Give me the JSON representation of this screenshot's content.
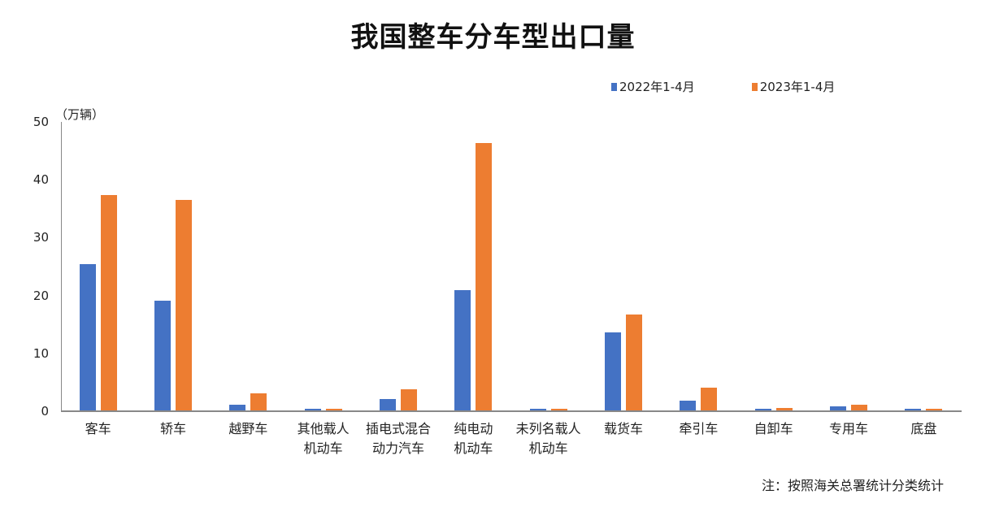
{
  "title": "我国整车分车型出口量",
  "unit_label": "（万辆）",
  "note": "注：按照海关总署统计分类统计",
  "legend": [
    {
      "label": "2022年1-4月",
      "color": "#4472C4"
    },
    {
      "label": "2023年1-4月",
      "color": "#ED7D31"
    }
  ],
  "chart_data": {
    "type": "bar",
    "title": "我国整车分车型出口量",
    "xlabel": "",
    "ylabel": "（万辆）",
    "ylim": [
      0,
      50
    ],
    "yticks": [
      0,
      10,
      20,
      30,
      40,
      50
    ],
    "grid": false,
    "legend_position": "top-right",
    "categories": [
      "客车",
      "轿车",
      "越野车",
      "其他载人\n机动车",
      "插电式混合\n动力汽车",
      "纯电动\n机动车",
      "未列名载人\n机动车",
      "载货车",
      "牵引车",
      "自卸车",
      "专用车",
      "底盘"
    ],
    "series": [
      {
        "name": "2022年1-4月",
        "color": "#4472C4",
        "values": [
          25.4,
          19.1,
          1.1,
          0.4,
          2.1,
          20.9,
          0.4,
          13.6,
          1.8,
          0.4,
          0.8,
          0.4
        ]
      },
      {
        "name": "2023年1-4月",
        "color": "#ED7D31",
        "values": [
          37.4,
          36.5,
          3.1,
          0.4,
          3.8,
          46.3,
          0.4,
          16.7,
          4.1,
          0.6,
          1.1,
          0.4
        ]
      }
    ],
    "note": "注：按照海关总署统计分类统计"
  }
}
